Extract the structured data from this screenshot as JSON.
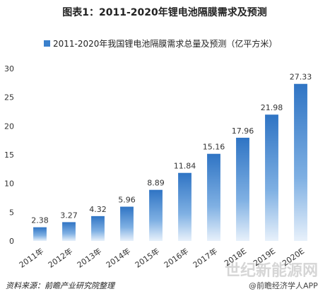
{
  "chart_data": {
    "type": "bar",
    "title": "图表1：2011-2020年锂电池隔膜需求及预测",
    "categories": [
      "2011年",
      "2012年",
      "2013年",
      "2014年",
      "2015年",
      "2016年",
      "2017年",
      "2018E",
      "2019E",
      "2020E"
    ],
    "series": [
      {
        "name": "2011-2020年我国锂电池隔膜需求总量及预测（亿平方米）",
        "color": "#3a80cc",
        "values": [
          2.38,
          3.27,
          4.32,
          5.96,
          8.89,
          11.84,
          15.16,
          17.96,
          21.98,
          27.33
        ]
      }
    ],
    "ylim": [
      0,
      30
    ],
    "yticks": [
      0,
      5,
      10,
      15,
      20,
      25,
      30
    ],
    "grid": false,
    "source": "资料来源：前瞻产业研究院整理",
    "watermarks": [
      "世纪新能源网",
      "@前瞻经济学人APP"
    ]
  }
}
